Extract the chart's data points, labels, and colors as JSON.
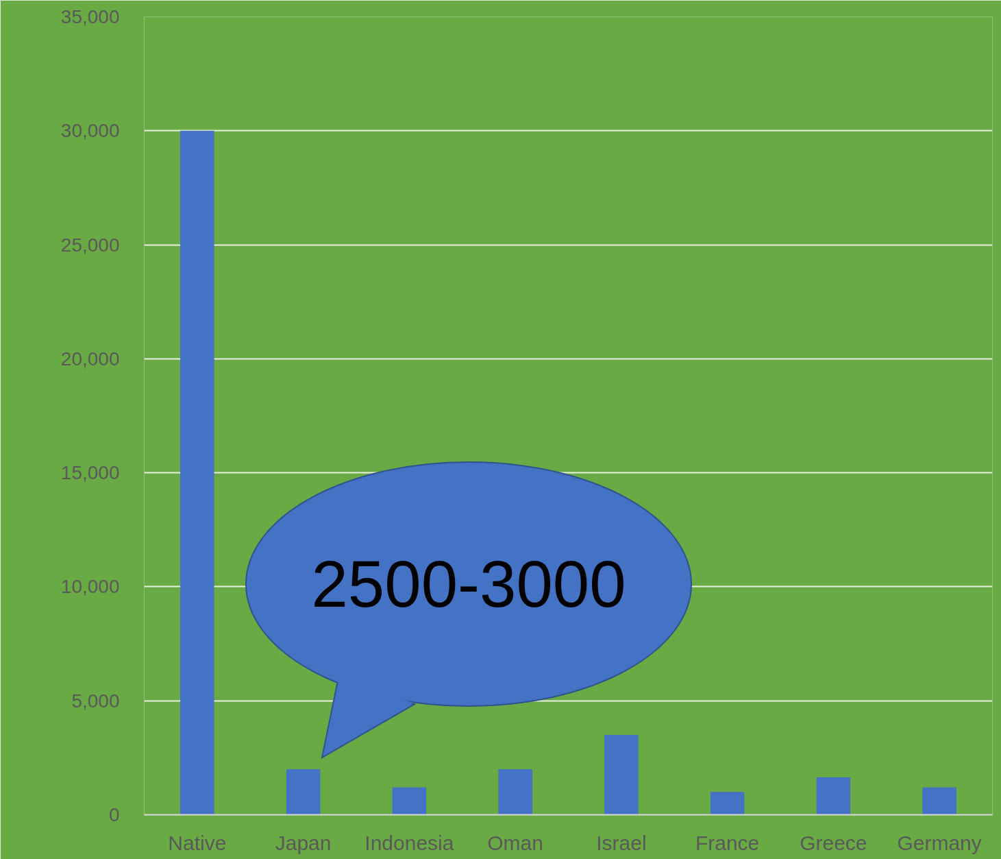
{
  "chart_data": {
    "type": "bar",
    "categories": [
      "Native",
      "Japan",
      "Indonesia",
      "Oman",
      "Israel",
      "France",
      "Greece",
      "Germany"
    ],
    "values": [
      30000,
      2000,
      1200,
      2000,
      3500,
      1000,
      1650,
      1200
    ],
    "color": "#4472c4",
    "ylim": [
      0,
      35000
    ],
    "yticks": [
      {
        "value": 0,
        "label": "0"
      },
      {
        "value": 5000,
        "label": "5,000"
      },
      {
        "value": 10000,
        "label": "10,000"
      },
      {
        "value": 15000,
        "label": "15,000"
      },
      {
        "value": 20000,
        "label": "20,000"
      },
      {
        "value": 25000,
        "label": "25,000"
      },
      {
        "value": 30000,
        "label": "30,000"
      },
      {
        "value": 35000,
        "label": "35,000"
      }
    ],
    "grid": "y",
    "annotations": [
      "2500-3000"
    ]
  }
}
